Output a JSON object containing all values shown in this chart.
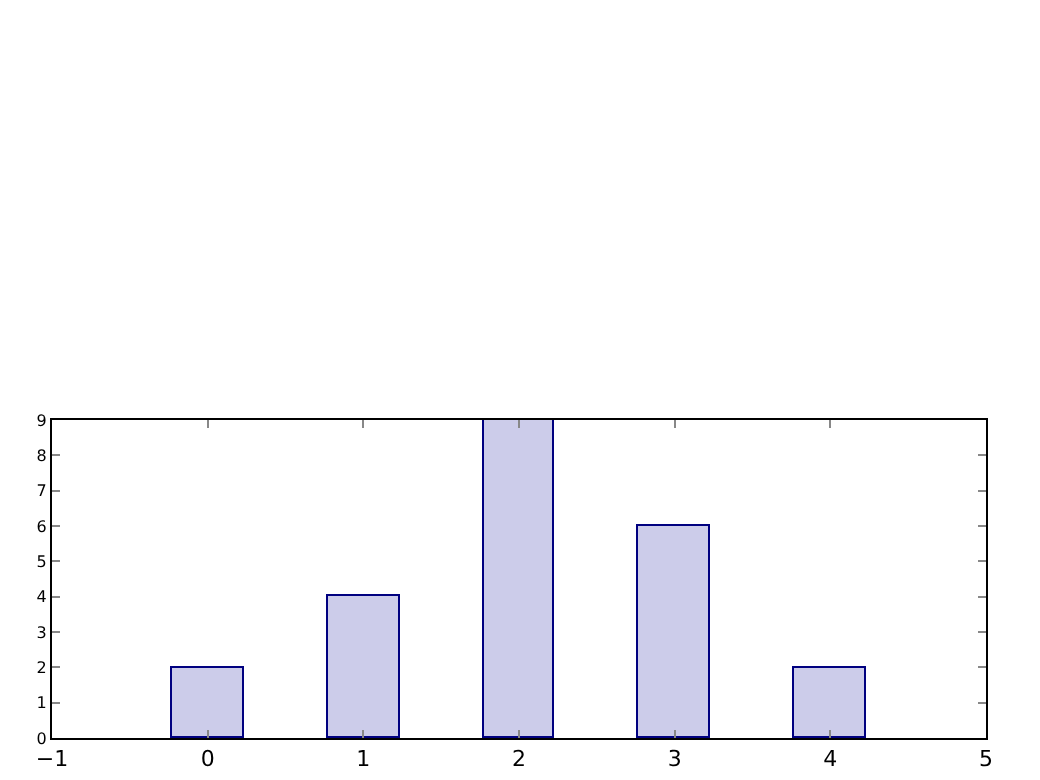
{
  "chart_data": {
    "type": "bar",
    "x": [
      0,
      1,
      2,
      3,
      4
    ],
    "series": [
      {
        "color": "#ccccea",
        "values": [
          2,
          4,
          9,
          6,
          2
        ]
      }
    ],
    "xlim": [
      -1,
      5
    ],
    "xticks": [
      {
        "value": -1,
        "label": "−1"
      },
      0,
      1,
      2,
      3,
      4,
      5
    ],
    "ylim": [
      0,
      9
    ],
    "yticks": [
      0,
      1,
      2,
      3,
      4,
      5,
      6,
      7,
      8,
      9
    ],
    "grid": false
  }
}
